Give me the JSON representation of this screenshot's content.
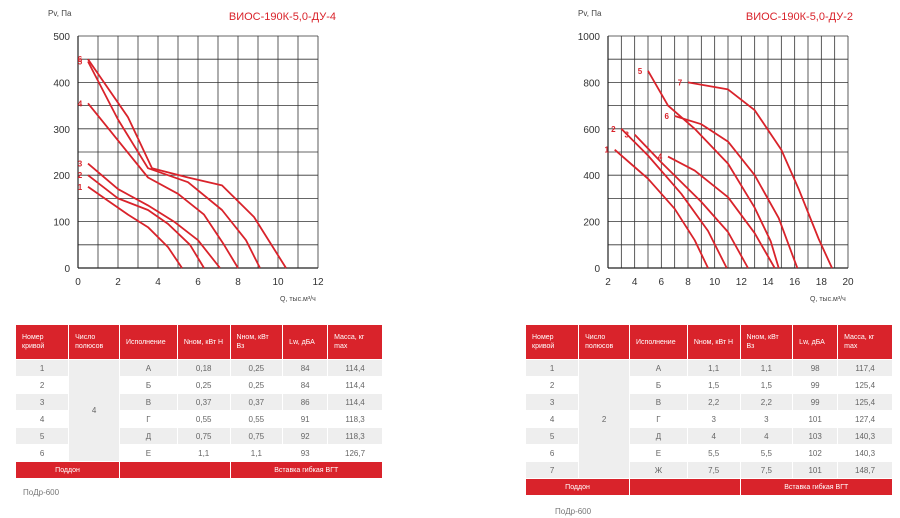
{
  "colors": {
    "accent": "#d9232b",
    "grid": "#333333",
    "curve": "#d9232b"
  },
  "chart_data": [
    {
      "type": "line",
      "title": "ВИОС-190К-5,0-ДУ-4",
      "ylabel": "Pv, Па",
      "xlabel": "Q, тыс.м³/ч",
      "xlim": [
        0,
        12
      ],
      "ylim": [
        0,
        500
      ],
      "xticks": [
        0,
        2,
        4,
        6,
        8,
        10,
        12
      ],
      "yticks": [
        0,
        100,
        200,
        300,
        400,
        500
      ],
      "x_minor_step": 1,
      "y_minor_step": 50,
      "grid": true,
      "series": [
        {
          "name": "1",
          "points": [
            [
              0.5,
              175
            ],
            [
              1.5,
              145
            ],
            [
              2.5,
              115
            ],
            [
              3.5,
              88
            ],
            [
              4.5,
              45
            ],
            [
              5.2,
              0
            ]
          ]
        },
        {
          "name": "2",
          "points": [
            [
              0.5,
              200
            ],
            [
              2,
              150
            ],
            [
              3.5,
              125
            ],
            [
              4.5,
              95
            ],
            [
              5.6,
              50
            ],
            [
              6.3,
              0
            ]
          ]
        },
        {
          "name": "3",
          "points": [
            [
              0.5,
              225
            ],
            [
              2,
              170
            ],
            [
              3.5,
              135
            ],
            [
              4.8,
              100
            ],
            [
              6,
              60
            ],
            [
              7.1,
              0
            ]
          ]
        },
        {
          "name": "4",
          "points": [
            [
              0.5,
              355
            ],
            [
              2,
              275
            ],
            [
              3.5,
              195
            ],
            [
              5,
              160
            ],
            [
              6.3,
              115
            ],
            [
              7.3,
              50
            ],
            [
              8,
              0
            ]
          ]
        },
        {
          "name": "5",
          "points": [
            [
              0.5,
              445
            ],
            [
              2,
              320
            ],
            [
              3.5,
              215
            ],
            [
              5.5,
              185
            ],
            [
              7.2,
              125
            ],
            [
              8.4,
              60
            ],
            [
              9.1,
              0
            ]
          ]
        },
        {
          "name": "6",
          "points": [
            [
              0.5,
              450
            ],
            [
              2.5,
              325
            ],
            [
              3.7,
              215
            ],
            [
              5.5,
              195
            ],
            [
              7.2,
              178
            ],
            [
              8.8,
              110
            ],
            [
              10.4,
              0
            ]
          ]
        }
      ]
    },
    {
      "type": "line",
      "title": "ВИОС-190К-5,0-ДУ-2",
      "ylabel": "Pv, Па",
      "xlabel": "Q, тыс.м³/ч",
      "xlim": [
        2,
        20
      ],
      "ylim": [
        0,
        1000
      ],
      "xticks": [
        2,
        4,
        6,
        8,
        10,
        12,
        14,
        16,
        18,
        20
      ],
      "yticks": [
        0,
        200,
        400,
        600,
        800,
        1000
      ],
      "x_minor_step": 1,
      "y_minor_step": 100,
      "grid": true,
      "series": [
        {
          "name": "1",
          "points": [
            [
              2.5,
              510
            ],
            [
              5,
              385
            ],
            [
              7,
              255
            ],
            [
              8.5,
              120
            ],
            [
              9.5,
              0
            ]
          ]
        },
        {
          "name": "2",
          "points": [
            [
              3,
              600
            ],
            [
              5,
              485
            ],
            [
              7.5,
              320
            ],
            [
              9.5,
              160
            ],
            [
              10.9,
              0
            ]
          ]
        },
        {
          "name": "3",
          "points": [
            [
              4,
              575
            ],
            [
              6,
              455
            ],
            [
              9,
              285
            ],
            [
              11,
              155
            ],
            [
              12.5,
              0
            ]
          ]
        },
        {
          "name": "4",
          "points": [
            [
              6.5,
              480
            ],
            [
              8.5,
              420
            ],
            [
              11,
              305
            ],
            [
              13,
              150
            ],
            [
              14.5,
              0
            ]
          ]
        },
        {
          "name": "5",
          "points": [
            [
              5,
              850
            ],
            [
              6.5,
              700
            ],
            [
              8.5,
              600
            ],
            [
              11,
              450
            ],
            [
              13,
              260
            ],
            [
              14.2,
              115
            ],
            [
              14.8,
              0
            ]
          ]
        },
        {
          "name": "6",
          "points": [
            [
              7,
              655
            ],
            [
              9,
              620
            ],
            [
              11,
              545
            ],
            [
              13,
              400
            ],
            [
              14.8,
              215
            ],
            [
              16.2,
              0
            ]
          ]
        },
        {
          "name": "7",
          "points": [
            [
              8,
              800
            ],
            [
              11,
              770
            ],
            [
              13,
              680
            ],
            [
              15,
              510
            ],
            [
              16.3,
              340
            ],
            [
              17.8,
              125
            ],
            [
              18.8,
              0
            ]
          ]
        }
      ]
    }
  ],
  "tables": [
    {
      "headers": [
        "Номер кривой",
        "Число полюсов",
        "Исполнение",
        "Nном, кВт Н",
        "Nном, кВт Вз",
        "Lw, дБА",
        "Масса, кг max"
      ],
      "poles": "4",
      "rows": [
        {
          "num": "1",
          "exec": "А",
          "n_h": "0,18",
          "n_vz": "0,25",
          "lw": "84",
          "mass": "114,4"
        },
        {
          "num": "2",
          "exec": "Б",
          "n_h": "0,25",
          "n_vz": "0,25",
          "lw": "84",
          "mass": "114,4"
        },
        {
          "num": "3",
          "exec": "В",
          "n_h": "0,37",
          "n_vz": "0,37",
          "lw": "86",
          "mass": "114,4"
        },
        {
          "num": "4",
          "exec": "Г",
          "n_h": "0,55",
          "n_vz": "0,55",
          "lw": "91",
          "mass": "118,3"
        },
        {
          "num": "5",
          "exec": "Д",
          "n_h": "0,75",
          "n_vz": "0,75",
          "lw": "92",
          "mass": "118,3"
        },
        {
          "num": "6",
          "exec": "Е",
          "n_h": "1,1",
          "n_vz": "1,1",
          "lw": "93",
          "mass": "126,7"
        }
      ],
      "footer_left": "Поддон",
      "footer_right": "Вставка гибкая ВГТ",
      "footer_value": "ПоДр-600"
    },
    {
      "headers": [
        "Номер кривой",
        "Число полюсов",
        "Исполнение",
        "Nном, кВт Н",
        "Nном, кВт Вз",
        "Lw, дБА",
        "Масса, кг max"
      ],
      "poles": "2",
      "rows": [
        {
          "num": "1",
          "exec": "А",
          "n_h": "1,1",
          "n_vz": "1,1",
          "lw": "98",
          "mass": "117,4"
        },
        {
          "num": "2",
          "exec": "Б",
          "n_h": "1,5",
          "n_vz": "1,5",
          "lw": "99",
          "mass": "125,4"
        },
        {
          "num": "3",
          "exec": "В",
          "n_h": "2,2",
          "n_vz": "2,2",
          "lw": "99",
          "mass": "125,4"
        },
        {
          "num": "4",
          "exec": "Г",
          "n_h": "3",
          "n_vz": "3",
          "lw": "101",
          "mass": "127,4"
        },
        {
          "num": "5",
          "exec": "Д",
          "n_h": "4",
          "n_vz": "4",
          "lw": "103",
          "mass": "140,3"
        },
        {
          "num": "6",
          "exec": "Е",
          "n_h": "5,5",
          "n_vz": "5,5",
          "lw": "102",
          "mass": "140,3"
        },
        {
          "num": "7",
          "exec": "Ж",
          "n_h": "7,5",
          "n_vz": "7,5",
          "lw": "101",
          "mass": "148,7"
        }
      ],
      "footer_left": "Поддон",
      "footer_right": "Вставка гибкая ВГТ",
      "footer_value": "ПоДр-600"
    }
  ]
}
